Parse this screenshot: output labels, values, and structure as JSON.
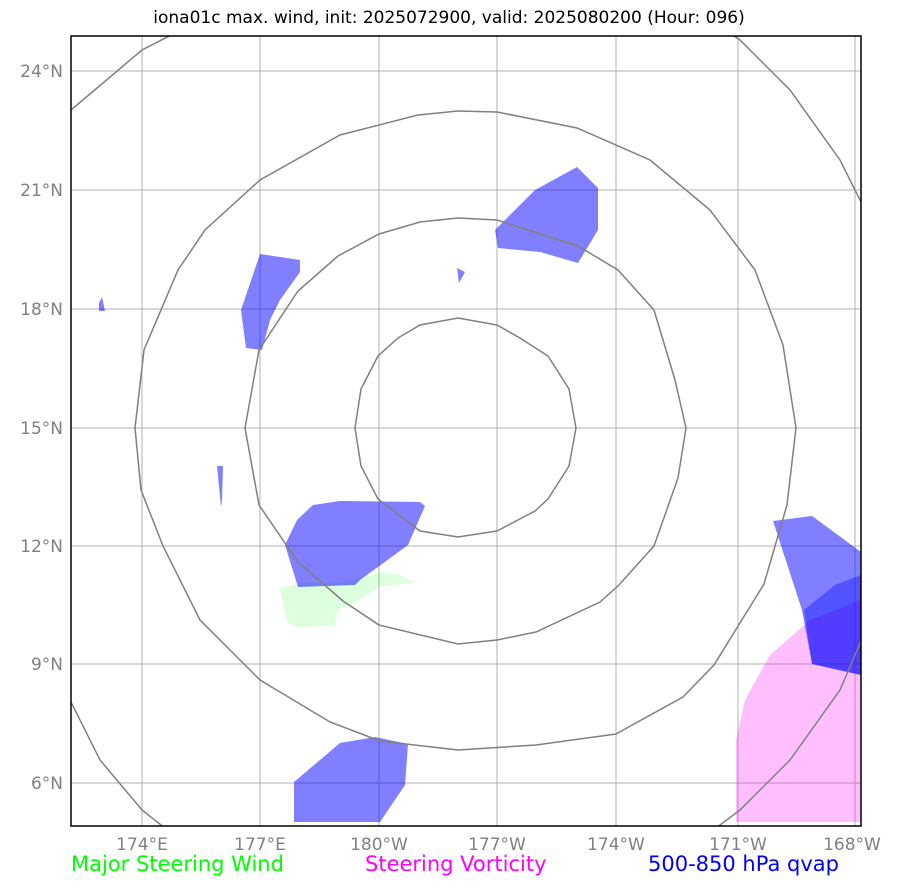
{
  "title": "iona01c max. wind, init: 2025072900, valid: 2025080200 (Hour: 096)",
  "map": {
    "y_ticks": [
      "24°N",
      "21°N",
      "18°N",
      "15°N",
      "12°N",
      "9°N",
      "6°N"
    ],
    "x_ticks": [
      "174°E",
      "177°E",
      "180°W",
      "177°W",
      "174°W",
      "171°W",
      "168°W"
    ]
  },
  "legend": {
    "steering_wind": {
      "label": "Major Steering Wind",
      "color": "#00ff00"
    },
    "steering_vorticity": {
      "label": "Steering Vorticity",
      "color": "#ff00ff"
    },
    "qvap": {
      "label": "500-850 hPa qvap",
      "color": "#0000ff"
    }
  },
  "colors": {
    "qvap_fill": "#0000ff",
    "vorticity_fill": "#ff00ff",
    "wind_fill": "#00ff00",
    "range_rings": "#808080",
    "gridlines": "#b0b0b0"
  }
}
